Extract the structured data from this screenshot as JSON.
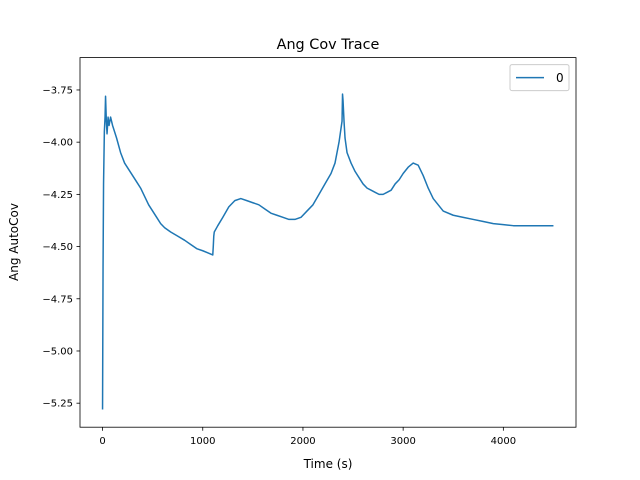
{
  "chart_data": {
    "type": "line",
    "title": "Ang Cov Trace",
    "xlabel": "Time (s)",
    "ylabel": "Ang AutoCov",
    "xlim": [
      -225,
      4725
    ],
    "ylim": [
      -5.365,
      -3.595
    ],
    "xticks": [
      0,
      1000,
      2000,
      3000,
      4000
    ],
    "xtick_labels": [
      "0",
      "1000",
      "2000",
      "3000",
      "4000"
    ],
    "yticks": [
      -3.75,
      -4.0,
      -4.25,
      -4.5,
      -4.75,
      -5.0,
      -5.25
    ],
    "ytick_labels": [
      "−3.75",
      "−4.00",
      "−4.25",
      "−4.50",
      "−4.75",
      "−5.00",
      "−5.25"
    ],
    "grid": false,
    "legend_position": "top-right",
    "series": [
      {
        "name": "0",
        "color": "#1f77b4",
        "x": [
          0,
          5,
          10,
          18,
          25,
          30,
          38,
          45,
          55,
          65,
          80,
          100,
          140,
          180,
          220,
          260,
          300,
          340,
          380,
          420,
          460,
          500,
          540,
          580,
          620,
          680,
          750,
          820,
          880,
          940,
          1000,
          1050,
          1100,
          1105,
          1110,
          1115,
          1150,
          1200,
          1260,
          1320,
          1380,
          1440,
          1500,
          1560,
          1620,
          1680,
          1740,
          1800,
          1860,
          1920,
          1980,
          2040,
          2100,
          2160,
          2220,
          2280,
          2320,
          2360,
          2390,
          2395,
          2400,
          2405,
          2410,
          2420,
          2440,
          2480,
          2520,
          2560,
          2600,
          2640,
          2680,
          2720,
          2760,
          2800,
          2840,
          2880,
          2920,
          2960,
          3000,
          3050,
          3100,
          3150,
          3200,
          3250,
          3300,
          3350,
          3400,
          3500,
          3600,
          3700,
          3800,
          3900,
          4000,
          4100,
          4200,
          4300,
          4400,
          4500
        ],
        "y": [
          -5.28,
          -4.6,
          -4.2,
          -3.95,
          -3.88,
          -3.78,
          -3.9,
          -3.96,
          -3.88,
          -3.92,
          -3.88,
          -3.92,
          -3.98,
          -4.05,
          -4.1,
          -4.13,
          -4.16,
          -4.19,
          -4.22,
          -4.26,
          -4.3,
          -4.33,
          -4.36,
          -4.39,
          -4.41,
          -4.43,
          -4.45,
          -4.47,
          -4.49,
          -4.51,
          -4.52,
          -4.53,
          -4.54,
          -4.5,
          -4.45,
          -4.43,
          -4.4,
          -4.36,
          -4.31,
          -4.28,
          -4.27,
          -4.28,
          -4.29,
          -4.3,
          -4.32,
          -4.34,
          -4.35,
          -4.36,
          -4.37,
          -4.37,
          -4.36,
          -4.33,
          -4.3,
          -4.25,
          -4.2,
          -4.15,
          -4.1,
          -4.0,
          -3.9,
          -3.77,
          -3.8,
          -3.85,
          -3.9,
          -3.98,
          -4.05,
          -4.1,
          -4.14,
          -4.17,
          -4.2,
          -4.22,
          -4.23,
          -4.24,
          -4.25,
          -4.25,
          -4.24,
          -4.23,
          -4.2,
          -4.18,
          -4.15,
          -4.12,
          -4.1,
          -4.11,
          -4.16,
          -4.22,
          -4.27,
          -4.3,
          -4.33,
          -4.35,
          -4.36,
          -4.37,
          -4.38,
          -4.39,
          -4.395,
          -4.4,
          -4.4,
          -4.4,
          -4.4,
          -4.4
        ]
      }
    ]
  }
}
